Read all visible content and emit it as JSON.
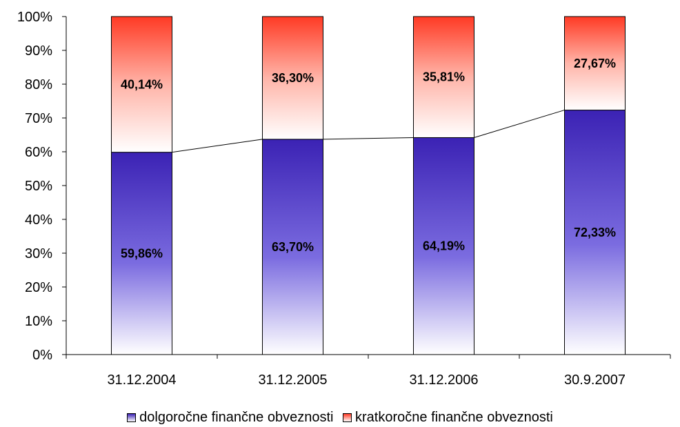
{
  "chart_data": {
    "type": "bar",
    "stacked": true,
    "percent": true,
    "categories": [
      "31.12.2004",
      "31.12.2005",
      "31.12.2006",
      "30.9.2007"
    ],
    "series": [
      {
        "name": "dolgoročne finančne obveznosti",
        "values": [
          59.86,
          63.7,
          64.19,
          72.33
        ],
        "labels": [
          "59,86%",
          "63,70%",
          "64,19%",
          "72,33%"
        ],
        "color": "#3b22b4"
      },
      {
        "name": "kratkoročne finančne obveznosti",
        "values": [
          40.14,
          36.3,
          35.81,
          27.67
        ],
        "labels": [
          "40,14%",
          "36,30%",
          "35,81%",
          "27,67%"
        ],
        "color": "#ff3a24"
      }
    ],
    "y_ticks": [
      "0%",
      "10%",
      "20%",
      "30%",
      "40%",
      "50%",
      "60%",
      "70%",
      "80%",
      "90%",
      "100%"
    ],
    "ylim": [
      0,
      100
    ],
    "series_line": true,
    "grid": false,
    "legend_position": "bottom",
    "title": "",
    "xlabel": "",
    "ylabel": ""
  }
}
